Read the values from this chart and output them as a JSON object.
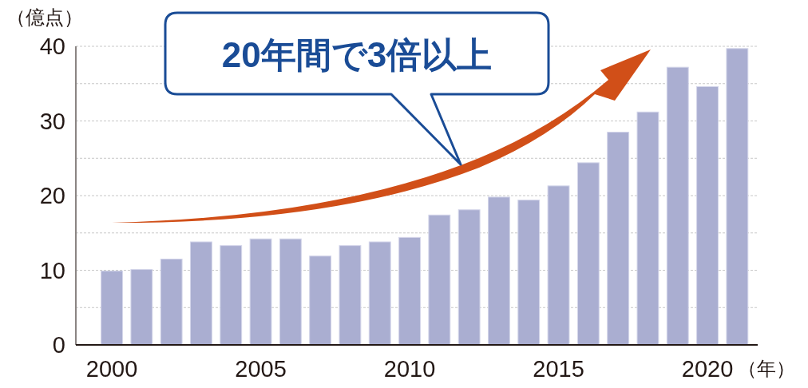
{
  "chart_data": {
    "type": "bar",
    "ylabel": "（億点）",
    "xlabel": "（年）",
    "annotations": [
      "20年間で3倍以上"
    ],
    "categories": [
      "2000",
      null,
      null,
      null,
      null,
      "2005",
      null,
      null,
      null,
      null,
      "2010",
      null,
      null,
      null,
      null,
      "2015",
      null,
      null,
      null,
      null,
      "2020",
      null
    ],
    "values": [
      9.9,
      10.1,
      11.5,
      13.8,
      13.3,
      14.2,
      14.2,
      11.9,
      13.3,
      13.8,
      14.4,
      17.4,
      18.1,
      19.8,
      19.4,
      21.3,
      24.4,
      28.5,
      31.2,
      37.2,
      34.6,
      39.7
    ],
    "color": "#aaaed1",
    "ylim": [
      0,
      40
    ],
    "yticks": [
      0,
      {
        "value": 5,
        "label": null
      },
      10,
      {
        "value": 15,
        "label": null
      },
      20,
      {
        "value": 25,
        "label": null
      },
      30,
      {
        "value": 35,
        "label": null
      },
      40
    ],
    "grid": true
  }
}
